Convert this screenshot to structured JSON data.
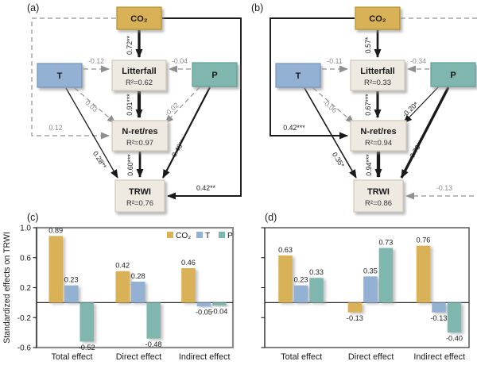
{
  "colors": {
    "co2": "#D9B156",
    "t": "#93B1D3",
    "p": "#7FB7AE",
    "box": "#EFEAE1",
    "box_border": "#CFC8B8",
    "co2_border": "#B5922F",
    "t_border": "#7495C0",
    "p_border": "#619E94",
    "dashed_gray": "#8F8F8F",
    "solid_black": "#1A1A1A",
    "label_gray": "#8A8A8A",
    "label_dark": "#1A1A1A"
  },
  "sem_panels": [
    {
      "id": "a",
      "label": "(a)",
      "nodes": {
        "co2": {
          "label": "CO₂"
        },
        "t": {
          "label": "T"
        },
        "p": {
          "label": "P"
        },
        "litterfall": {
          "label": "Litterfall",
          "r2": "R²=0.62"
        },
        "nret": {
          "label": "N-ret/res",
          "r2": "R²=0.97"
        },
        "trwi": {
          "label": "TRWI",
          "r2": "R²=0.76"
        }
      },
      "edges": [
        {
          "from": "co2",
          "to": "litterfall",
          "coef": "0.72**",
          "value": 0.72,
          "style": "solid"
        },
        {
          "from": "t",
          "to": "litterfall",
          "coef": "-0.12",
          "value": 0.12,
          "style": "dashed"
        },
        {
          "from": "p",
          "to": "litterfall",
          "coef": "-0.04",
          "value": 0.04,
          "style": "dashed"
        },
        {
          "from": "litterfall",
          "to": "nret",
          "coef": "0.91***",
          "value": 0.91,
          "style": "solid"
        },
        {
          "from": "t",
          "to": "nret",
          "coef": "0.03",
          "value": 0.03,
          "style": "dashed"
        },
        {
          "from": "p",
          "to": "nret",
          "coef": "-0.02",
          "value": 0.02,
          "style": "dashed"
        },
        {
          "from": "co2",
          "to": "nret",
          "route": "left",
          "coef": "0.12",
          "value": 0.12,
          "style": "dashed"
        },
        {
          "from": "t",
          "to": "trwi",
          "coef": "0.28**",
          "value": 0.28,
          "style": "solid"
        },
        {
          "from": "nret",
          "to": "trwi",
          "coef": "0.60***",
          "value": 0.6,
          "style": "solid"
        },
        {
          "from": "p",
          "to": "trwi",
          "coef": "-0.48***",
          "value": 0.48,
          "style": "solid"
        },
        {
          "from": "co2",
          "to": "trwi",
          "route": "right",
          "coef": "0.42**",
          "value": 0.42,
          "style": "solid"
        }
      ]
    },
    {
      "id": "b",
      "label": "(b)",
      "nodes": {
        "co2": {
          "label": "CO₂"
        },
        "t": {
          "label": "T"
        },
        "p": {
          "label": "P"
        },
        "litterfall": {
          "label": "Litterfall",
          "r2": "R²=0.33"
        },
        "nret": {
          "label": "N-ret/res",
          "r2": "R²=0.94"
        },
        "trwi": {
          "label": "TRWI",
          "r2": "R²=0.86"
        }
      },
      "edges": [
        {
          "from": "co2",
          "to": "litterfall",
          "coef": "0.57*",
          "value": 0.57,
          "style": "solid"
        },
        {
          "from": "t",
          "to": "litterfall",
          "coef": "-0.11",
          "value": 0.11,
          "style": "dashed"
        },
        {
          "from": "p",
          "to": "litterfall",
          "coef": "-0.34",
          "value": 0.34,
          "style": "dashed"
        },
        {
          "from": "litterfall",
          "to": "nret",
          "coef": "0.67***",
          "value": 0.67,
          "style": "solid"
        },
        {
          "from": "t",
          "to": "nret",
          "coef": "-0.06",
          "value": 0.06,
          "style": "dashed"
        },
        {
          "from": "p",
          "to": "nret",
          "coef": "-0.20*",
          "value": 0.2,
          "style": "solid"
        },
        {
          "from": "co2",
          "to": "nret",
          "route": "left",
          "coef": "0.42***",
          "value": 0.42,
          "style": "solid"
        },
        {
          "from": "t",
          "to": "trwi",
          "coef": "0.35*",
          "value": 0.35,
          "style": "solid"
        },
        {
          "from": "nret",
          "to": "trwi",
          "coef": "0.94***",
          "value": 0.94,
          "style": "solid"
        },
        {
          "from": "p",
          "to": "trwi",
          "coef": "0.73***",
          "value": 0.73,
          "style": "solid"
        },
        {
          "from": "co2",
          "to": "trwi",
          "route": "right",
          "coef": "-0.13",
          "value": 0.13,
          "style": "dashed"
        }
      ]
    }
  ],
  "chart_data": [
    {
      "id": "c",
      "type": "bar",
      "panel_label": "(c)",
      "categories": [
        "Total effect",
        "Direct effect",
        "Indirect effect"
      ],
      "series": [
        {
          "name": "CO₂",
          "color": "#D9B156",
          "values": [
            0.89,
            0.42,
            0.46
          ]
        },
        {
          "name": "T",
          "color": "#93B1D3",
          "values": [
            0.23,
            0.28,
            -0.05
          ]
        },
        {
          "name": "P",
          "color": "#7FB7AE",
          "values": [
            -0.52,
            -0.48,
            -0.04
          ]
        }
      ],
      "ylabel": "Standardized effects on TRWI",
      "yticks": [
        1.0,
        0.6,
        0.2,
        -0.2,
        -0.6
      ],
      "ylim": [
        -0.6,
        1.0
      ],
      "legend_position": "top-right",
      "grid": false
    },
    {
      "id": "d",
      "type": "bar",
      "panel_label": "(d)",
      "categories": [
        "Total effect",
        "Direct effect",
        "Indirect effect"
      ],
      "series": [
        {
          "name": "CO₂",
          "color": "#D9B156",
          "values": [
            0.63,
            -0.13,
            0.76
          ]
        },
        {
          "name": "T",
          "color": "#93B1D3",
          "values": [
            0.23,
            0.35,
            -0.13
          ]
        },
        {
          "name": "P",
          "color": "#7FB7AE",
          "values": [
            0.33,
            0.73,
            -0.4
          ]
        }
      ],
      "ylabel": "",
      "yticks": [
        1.0,
        0.6,
        0.2,
        -0.2,
        -0.6
      ],
      "ylim": [
        -0.6,
        1.0
      ],
      "legend_position": "none",
      "grid": false
    }
  ]
}
